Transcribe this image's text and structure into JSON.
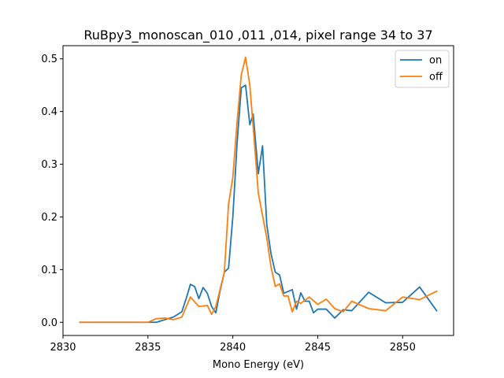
{
  "chart_data": {
    "type": "line",
    "title": "RuBpy3_monoscan_010 ,011 ,014, pixel range 34 to 37",
    "xlabel": "Mono Energy (eV)",
    "ylabel": "",
    "xlim": [
      2830,
      2853
    ],
    "ylim": [
      -0.025,
      0.525
    ],
    "xticks": [
      2830,
      2835,
      2840,
      2845,
      2850
    ],
    "yticks": [
      0.0,
      0.1,
      0.2,
      0.3,
      0.4,
      0.5
    ],
    "grid": false,
    "legend_placement": "top-right",
    "colors": {
      "on": "#1f77b4",
      "off": "#ff7f0e"
    },
    "series": [
      {
        "name": "on",
        "color": "#1f77b4",
        "x": [
          2831.0,
          2835.5,
          2836.0,
          2836.5,
          2837.0,
          2837.3,
          2837.5,
          2837.75,
          2838.0,
          2838.25,
          2838.5,
          2838.75,
          2839.0,
          2839.25,
          2839.5,
          2839.75,
          2840.0,
          2840.25,
          2840.5,
          2840.75,
          2841.0,
          2841.2,
          2841.5,
          2841.75,
          2842.0,
          2842.25,
          2842.5,
          2842.75,
          2843.0,
          2843.5,
          2843.75,
          2844.0,
          2844.25,
          2844.5,
          2844.75,
          2845.0,
          2845.5,
          2846.0,
          2846.5,
          2847.0,
          2848.0,
          2849.0,
          2850.0,
          2851.0,
          2852.0
        ],
        "y": [
          0.0,
          0.0,
          0.005,
          0.01,
          0.02,
          0.05,
          0.072,
          0.068,
          0.045,
          0.066,
          0.055,
          0.03,
          0.018,
          0.06,
          0.095,
          0.103,
          0.2,
          0.34,
          0.445,
          0.45,
          0.375,
          0.395,
          0.282,
          0.335,
          0.185,
          0.13,
          0.095,
          0.09,
          0.055,
          0.062,
          0.025,
          0.056,
          0.04,
          0.04,
          0.018,
          0.025,
          0.025,
          0.008,
          0.024,
          0.022,
          0.057,
          0.037,
          0.038,
          0.067,
          0.022
        ]
      },
      {
        "name": "off",
        "color": "#ff7f0e",
        "x": [
          2831.0,
          2835.0,
          2835.5,
          2836.0,
          2836.5,
          2837.0,
          2837.5,
          2838.0,
          2838.5,
          2838.75,
          2839.0,
          2839.5,
          2839.75,
          2840.0,
          2840.25,
          2840.5,
          2840.75,
          2841.0,
          2841.25,
          2841.5,
          2842.0,
          2842.25,
          2842.5,
          2842.75,
          2843.0,
          2843.25,
          2843.5,
          2843.75,
          2844.0,
          2844.5,
          2845.0,
          2845.5,
          2846.0,
          2846.5,
          2847.0,
          2848.0,
          2849.0,
          2850.0,
          2851.0,
          2852.0
        ],
        "y": [
          0.0,
          0.0,
          0.007,
          0.008,
          0.005,
          0.01,
          0.048,
          0.03,
          0.032,
          0.015,
          0.03,
          0.095,
          0.225,
          0.275,
          0.38,
          0.47,
          0.503,
          0.45,
          0.35,
          0.245,
          0.16,
          0.105,
          0.068,
          0.073,
          0.05,
          0.05,
          0.02,
          0.04,
          0.036,
          0.048,
          0.034,
          0.044,
          0.026,
          0.02,
          0.04,
          0.026,
          0.022,
          0.048,
          0.043,
          0.059
        ]
      }
    ]
  }
}
